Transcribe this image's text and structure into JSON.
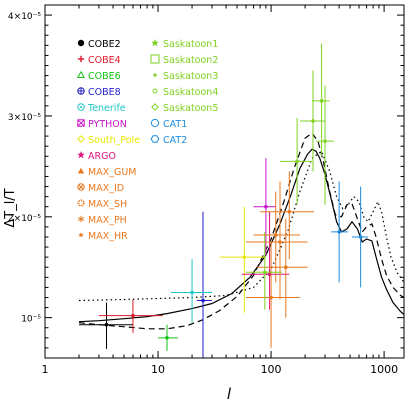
{
  "chart_data": {
    "type": "scatter",
    "xscale": "log",
    "xlabel": "l",
    "ylabel": "ΔT_l/T",
    "xlim": [
      1,
      1500
    ],
    "ylim": [
      6e-06,
      4.1e-05
    ],
    "x_tick_labels": [
      "1",
      "10",
      "100",
      "1000"
    ],
    "y_tick_labels": [
      "10⁻⁵",
      "2×10⁻⁵",
      "3×10⁻⁵",
      "4×10⁻⁵"
    ],
    "y_tick_values": [
      1e-05,
      2e-05,
      3e-05,
      4e-05
    ],
    "legend_left": [
      {
        "name": "COBE2",
        "color": "#000000",
        "marker": "dot"
      },
      {
        "name": "COBE4",
        "color": "#e0182a",
        "marker": "plus"
      },
      {
        "name": "COBE6",
        "color": "#15c315",
        "marker": "triangle"
      },
      {
        "name": "COBE8",
        "color": "#1e1ec8",
        "marker": "circle-plus"
      },
      {
        "name": "Tenerife",
        "color": "#19c7c7",
        "marker": "circle-dot"
      },
      {
        "name": "PYTHON",
        "color": "#c814c8",
        "marker": "square-x"
      },
      {
        "name": "South_Pole",
        "color": "#e8e800",
        "marker": "diamond"
      },
      {
        "name": "ARGO",
        "color": "#e01480",
        "marker": "star"
      },
      {
        "name": "MAX_GUM",
        "color": "#e8781e",
        "marker": "triangle-filled"
      },
      {
        "name": "MAX_ID",
        "color": "#e8781e",
        "marker": "circle-x"
      },
      {
        "name": "MAX_SH",
        "color": "#e8781e",
        "marker": "gear"
      },
      {
        "name": "MAX_PH",
        "color": "#e8781e",
        "marker": "asterisk"
      },
      {
        "name": "MAX_HR",
        "color": "#e8781e",
        "marker": "star-small"
      }
    ],
    "legend_right": [
      {
        "name": "Saskatoon1",
        "color": "#7ed321",
        "marker": "star"
      },
      {
        "name": "Saskatoon2",
        "color": "#7ed321",
        "marker": "square"
      },
      {
        "name": "Saskatoon3",
        "color": "#7ed321",
        "marker": "dot-small"
      },
      {
        "name": "Saskatoon4",
        "color": "#7ed321",
        "marker": "circle-small"
      },
      {
        "name": "Saskatoon5",
        "color": "#7ed321",
        "marker": "diamond"
      },
      {
        "name": "CAT1",
        "color": "#1e8cdc",
        "marker": "circle"
      },
      {
        "name": "CAT2",
        "color": "#1e8cdc",
        "marker": "hexagon"
      }
    ],
    "data_points": [
      {
        "x": 3.5,
        "y": 9.3e-06,
        "ylo": 6.9e-06,
        "yhi": 1.15e-05,
        "xlo": 2,
        "xhi": 6,
        "color": "#000000"
      },
      {
        "x": 6,
        "y": 1.02e-05,
        "ylo": 8.5e-06,
        "yhi": 1.18e-05,
        "xlo": 3,
        "xhi": 11,
        "color": "#e0182a"
      },
      {
        "x": 12,
        "y": 8e-06,
        "ylo": 6.7e-06,
        "yhi": 9.3e-06,
        "xlo": 10,
        "xhi": 15,
        "color": "#15c315"
      },
      {
        "x": 25,
        "y": 1.17e-05,
        "ylo": 2e-07,
        "yhi": 2.05e-05,
        "xlo": 22,
        "xhi": 30,
        "color": "#1e1ec8"
      },
      {
        "x": 20,
        "y": 1.25e-05,
        "ylo": 9.5e-06,
        "yhi": 1.58e-05,
        "xlo": 13,
        "xhi": 30,
        "color": "#19c7c7"
      },
      {
        "x": 90,
        "y": 2.1e-05,
        "ylo": 1.62e-05,
        "yhi": 2.58e-05,
        "xlo": 70,
        "xhi": 110,
        "color": "#c814c8"
      },
      {
        "x": 58,
        "y": 1.6e-05,
        "ylo": 1.05e-05,
        "yhi": 2.1e-05,
        "xlo": 35,
        "xhi": 90,
        "color": "#e8e800"
      },
      {
        "x": 97,
        "y": 1.43e-05,
        "ylo": 1.08e-05,
        "yhi": 2.05e-05,
        "xlo": 55,
        "xhi": 145,
        "color": "#e01480"
      },
      {
        "x": 100,
        "y": 1.2e-05,
        "ylo": 7e-06,
        "yhi": 1.75e-05,
        "xlo": 60,
        "xhi": 180,
        "color": "#e8781e"
      },
      {
        "x": 120,
        "y": 1.75e-05,
        "ylo": 1.18e-05,
        "yhi": 2.35e-05,
        "xlo": 60,
        "xhi": 210,
        "color": "#e8781e"
      },
      {
        "x": 135,
        "y": 1.5e-05,
        "ylo": 1e-05,
        "yhi": 1.98e-05,
        "xlo": 75,
        "xhi": 210,
        "color": "#e8781e"
      },
      {
        "x": 145,
        "y": 2.05e-05,
        "ylo": 1.58e-05,
        "yhi": 2.45e-05,
        "xlo": 80,
        "xhi": 240,
        "color": "#e8781e"
      },
      {
        "x": 110,
        "y": 1.82e-05,
        "ylo": 1.35e-05,
        "yhi": 2.25e-05,
        "xlo": 70,
        "xhi": 180,
        "color": "#e8781e"
      },
      {
        "x": 88,
        "y": 1.45e-05,
        "ylo": 1.08e-05,
        "yhi": 1.85e-05,
        "xlo": 60,
        "xhi": 125,
        "color": "#7ed321"
      },
      {
        "x": 170,
        "y": 2.55e-05,
        "ylo": 2.12e-05,
        "yhi": 2.98e-05,
        "xlo": 120,
        "xhi": 230,
        "color": "#7ed321"
      },
      {
        "x": 235,
        "y": 2.95e-05,
        "ylo": 2.45e-05,
        "yhi": 3.45e-05,
        "xlo": 180,
        "xhi": 300,
        "color": "#7ed321"
      },
      {
        "x": 280,
        "y": 3.15e-05,
        "ylo": 2.6e-05,
        "yhi": 3.72e-05,
        "xlo": 230,
        "xhi": 330,
        "color": "#7ed321"
      },
      {
        "x": 300,
        "y": 2.75e-05,
        "ylo": 2.12e-05,
        "yhi": 3.3e-05,
        "xlo": 250,
        "xhi": 360,
        "color": "#7ed321"
      },
      {
        "x": 400,
        "y": 1.85e-05,
        "ylo": 1.35e-05,
        "yhi": 2.35e-05,
        "xlo": 340,
        "xhi": 480,
        "color": "#1e8cdc"
      },
      {
        "x": 620,
        "y": 1.8e-05,
        "ylo": 1.3e-05,
        "yhi": 2.3e-05,
        "xlo": 520,
        "xhi": 720,
        "color": "#1e8cdc"
      }
    ],
    "curves": [
      {
        "style": "solid",
        "color": "#000000",
        "x": [
          2,
          3,
          5,
          8,
          12,
          20,
          30,
          45,
          65,
          90,
          120,
          150,
          180,
          210,
          230,
          250,
          270,
          300,
          340,
          380,
          420,
          470,
          520,
          580,
          640,
          700,
          780,
          850,
          950,
          1050,
          1200,
          1400,
          1500
        ],
        "y": [
          9.6e-06,
          9.7e-06,
          9.9e-06,
          1.01e-05,
          1.04e-05,
          1.09e-05,
          1.14e-05,
          1.24e-05,
          1.4e-05,
          1.62e-05,
          1.93e-05,
          2.22e-05,
          2.48e-05,
          2.62e-05,
          2.67e-05,
          2.65e-05,
          2.58e-05,
          2.42e-05,
          2.18e-05,
          1.95e-05,
          1.85e-05,
          1.88e-05,
          1.95e-05,
          1.88e-05,
          1.75e-05,
          1.78e-05,
          1.76e-05,
          1.6e-05,
          1.4e-05,
          1.28e-05,
          1.15e-05,
          1.06e-05,
          1.03e-05
        ]
      },
      {
        "style": "dashed",
        "color": "#000000",
        "x": [
          2,
          3,
          5,
          8,
          12,
          18,
          25,
          35,
          50,
          70,
          100,
          130,
          160,
          200,
          230,
          260,
          290,
          330,
          370,
          420,
          470,
          520,
          580,
          640,
          700,
          780,
          850,
          950,
          1050,
          1200,
          1400,
          1500
        ],
        "y": [
          9.5e-06,
          9.3e-06,
          9.1e-06,
          8.9e-06,
          8.9e-06,
          9.2e-06,
          9.8e-06,
          1.07e-05,
          1.21e-05,
          1.42e-05,
          1.78e-05,
          2.15e-05,
          2.48e-05,
          2.78e-05,
          2.83e-05,
          2.75e-05,
          2.55e-05,
          2.25e-05,
          2.02e-05,
          2e-05,
          2.12e-05,
          2.13e-05,
          1.98e-05,
          1.85e-05,
          1.9e-05,
          1.93e-05,
          1.8e-05,
          1.58e-05,
          1.42e-05,
          1.3e-05,
          1.22e-05,
          1.2e-05
        ]
      },
      {
        "style": "dotted",
        "color": "#000000",
        "x": [
          2,
          5,
          10,
          20,
          40,
          70,
          100,
          140,
          180,
          230,
          280,
          330,
          380,
          430,
          480,
          540,
          600,
          660,
          720,
          800,
          880,
          950,
          1050,
          1150,
          1300,
          1500
        ],
        "y": [
          1.17e-05,
          1.18e-05,
          1.19e-05,
          1.2e-05,
          1.22e-05,
          1.3e-05,
          1.48e-05,
          1.85e-05,
          2.25e-05,
          2.58e-05,
          2.65e-05,
          2.45e-05,
          2.2e-05,
          2.08e-05,
          2.12e-05,
          2.2e-05,
          2.15e-05,
          2e-05,
          1.95e-05,
          2.05e-05,
          2.15e-05,
          2.05e-05,
          1.8e-05,
          1.6e-05,
          1.45e-05,
          1.35e-05
        ]
      }
    ]
  }
}
